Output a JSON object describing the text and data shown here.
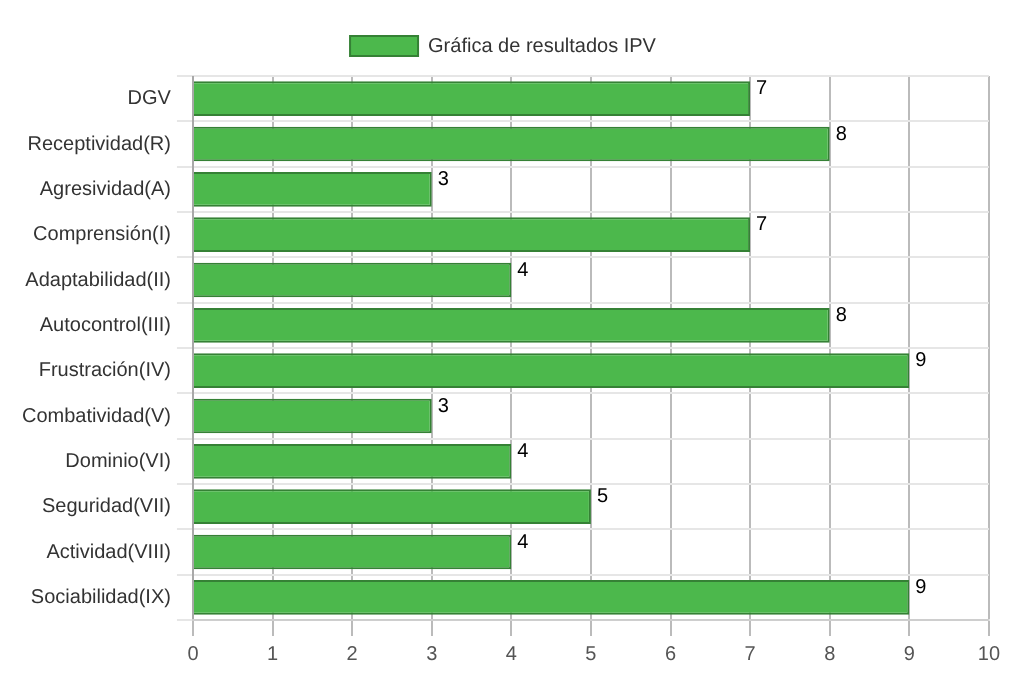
{
  "chart_data": {
    "type": "bar",
    "orientation": "horizontal",
    "categories": [
      "DGV",
      "Receptividad(R)",
      "Agresividad(A)",
      "Comprensión(I)",
      "Adaptabilidad(II)",
      "Autocontrol(III)",
      "Frustración(IV)",
      "Combatividad(V)",
      "Dominio(VI)",
      "Seguridad(VII)",
      "Actividad(VIII)",
      "Sociabilidad(IX)"
    ],
    "series": [
      {
        "name": "Gráfica de resultados IPV",
        "color": "#4cb84c",
        "values": [
          7,
          8,
          3,
          7,
          4,
          8,
          9,
          3,
          4,
          5,
          4,
          9
        ]
      }
    ],
    "xlim": [
      0,
      10
    ],
    "xticks": [
      0,
      1,
      2,
      3,
      4,
      5,
      6,
      7,
      8,
      9,
      10
    ],
    "grid": true,
    "legend": "top",
    "data_labels": true
  }
}
